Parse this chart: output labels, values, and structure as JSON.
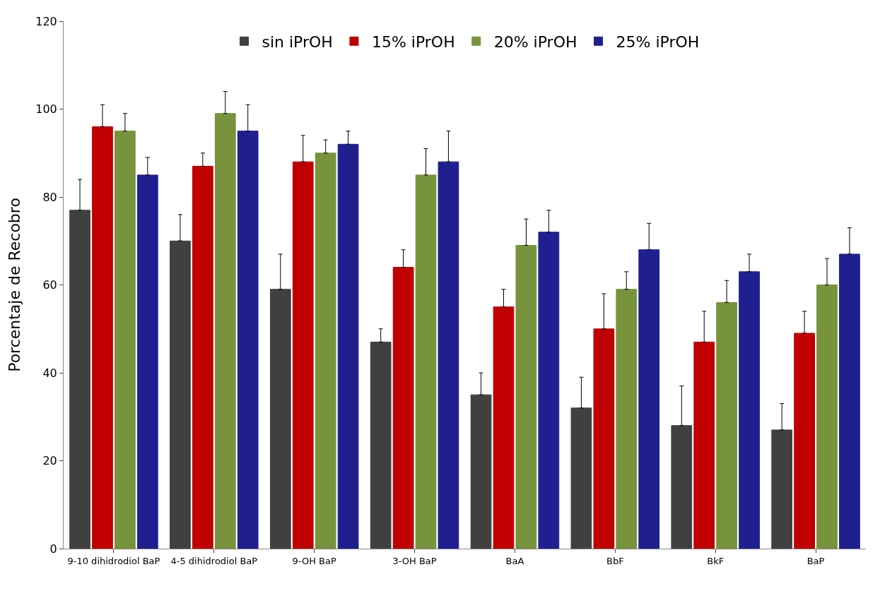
{
  "chart_data": {
    "type": "bar",
    "ylabel": "Porcentaje de Recobro",
    "categories": [
      "9-10 dihidrodiol BaP",
      "4-5 dihidrodiol BaP",
      "9-OH BaP",
      "3-OH BaP",
      "BaA",
      "BbF",
      "BkF",
      "BaP"
    ],
    "series": [
      {
        "name": "sin iPrOH",
        "color": "#404040",
        "values": [
          77,
          70,
          59,
          47,
          35,
          32,
          28,
          27
        ],
        "errors": [
          [
            77,
            84
          ],
          [
            70,
            76
          ],
          [
            59,
            67
          ],
          [
            47,
            50
          ],
          [
            35,
            40
          ],
          [
            32,
            39
          ],
          [
            28,
            37
          ],
          [
            27,
            33
          ]
        ]
      },
      {
        "name": "15% iPrOH",
        "color": "#c00000",
        "values": [
          96,
          87,
          88,
          64,
          55,
          50,
          47,
          49
        ],
        "errors": [
          [
            96,
            101
          ],
          [
            87,
            90
          ],
          [
            88,
            94
          ],
          [
            64,
            68
          ],
          [
            55,
            59
          ],
          [
            50,
            58
          ],
          [
            47,
            54
          ],
          [
            49,
            54
          ]
        ]
      },
      {
        "name": "20% iPrOH",
        "color": "#77933c",
        "values": [
          95,
          99,
          90,
          85,
          69,
          59,
          56,
          60
        ],
        "errors": [
          [
            95,
            99
          ],
          [
            99,
            104
          ],
          [
            90,
            93
          ],
          [
            85,
            91
          ],
          [
            69,
            75
          ],
          [
            59,
            63
          ],
          [
            56,
            61
          ],
          [
            60,
            66
          ]
        ]
      },
      {
        "name": "25% iPrOH",
        "color": "#1f1f8f",
        "values": [
          85,
          95,
          92,
          88,
          72,
          68,
          63,
          67
        ],
        "errors": [
          [
            85,
            89
          ],
          [
            95,
            101
          ],
          [
            92,
            95
          ],
          [
            88,
            95
          ],
          [
            72,
            77
          ],
          [
            68,
            74
          ],
          [
            63,
            67
          ],
          [
            67,
            73
          ]
        ]
      }
    ],
    "ylim": [
      0,
      120
    ],
    "yticks": [
      0,
      20,
      40,
      60,
      80,
      100,
      120
    ],
    "legend": "top"
  }
}
